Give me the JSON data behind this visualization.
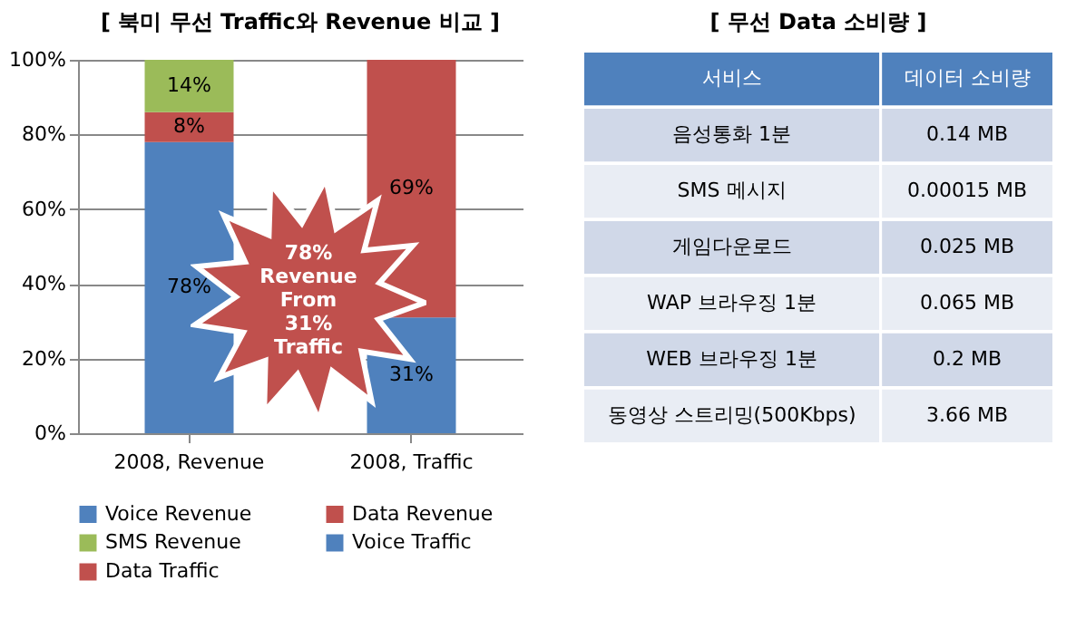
{
  "chart_data": [
    {
      "type": "bar",
      "title": "[ 북미 무선 Traffic와 Revenue 비교 ]",
      "categories": [
        "2008, Revenue",
        "2008, Traffic"
      ],
      "stacked": true,
      "series": [
        {
          "name": "Voice Revenue",
          "color": "#4f81bd",
          "values": [
            78,
            null
          ],
          "value_labels": [
            "78%",
            null
          ]
        },
        {
          "name": "Data Revenue",
          "color": "#c0504d",
          "values": [
            8,
            null
          ],
          "value_labels": [
            "8%",
            null
          ]
        },
        {
          "name": "SMS Revenue",
          "color": "#9bbb59",
          "values": [
            14,
            null
          ],
          "value_labels": [
            "14%",
            null
          ]
        },
        {
          "name": "Voice Traffic",
          "color": "#4f81bd",
          "values": [
            null,
            31
          ],
          "value_labels": [
            null,
            "31%"
          ]
        },
        {
          "name": "Data Traffic",
          "color": "#c0504d",
          "values": [
            null,
            69
          ],
          "value_labels": [
            null,
            "69%"
          ]
        }
      ],
      "ylim": [
        0,
        100
      ],
      "yticks": [
        {
          "value": 0,
          "label": "0%"
        },
        {
          "value": 20,
          "label": "20%"
        },
        {
          "value": 40,
          "label": "40%"
        },
        {
          "value": 60,
          "label": "60%"
        },
        {
          "value": 80,
          "label": "80%"
        },
        {
          "value": 100,
          "label": "100%"
        }
      ],
      "grid": "y",
      "legend": "bottom",
      "annotations": [
        "78% Revenue From 31% Traffic"
      ]
    },
    {
      "type": "other",
      "title": "[ 무선 Data 소비량 ]",
      "annotations": [
        "서비스",
        "데이터 소비량"
      ],
      "categories": [
        "음성통화 1분",
        "SMS 메시지",
        "게임다운로드",
        "WAP 브라우징 1분",
        "WEB 브라우징 1분",
        "동영상 스트리밍(500Kbps)"
      ],
      "value_labels": [
        "0.14 MB",
        "0.00015 MB",
        "0.025 MB",
        "0.065 MB",
        "0.2 MB",
        "3.66 MB"
      ]
    }
  ]
}
